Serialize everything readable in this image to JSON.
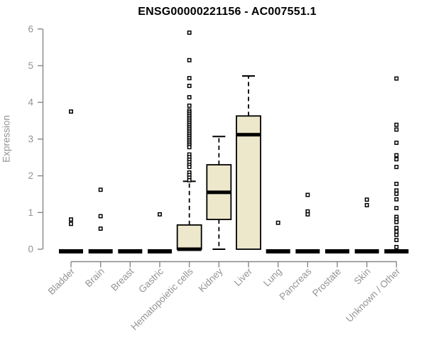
{
  "chart_data": {
    "type": "boxplot",
    "title": "ENSG00000221156 - AC007551.1",
    "ylabel": "Expression",
    "xlabel": "",
    "ylim": [
      0,
      6
    ],
    "yticks": [
      0,
      1,
      2,
      3,
      4,
      5,
      6
    ],
    "grid": "off",
    "legend": "none",
    "categories": [
      "Bladder",
      "Brain",
      "Breast",
      "Gastric",
      "Hematopoietic cells",
      "Kidney",
      "Liver",
      "Lung",
      "Pancreas",
      "Prostate",
      "Skin",
      "Unknown / Other"
    ],
    "boxes": [
      {
        "category": "Bladder",
        "whisker_low": 0,
        "q1": 0,
        "median": 0,
        "q3": 0,
        "whisker_high": 0,
        "outliers": [
          3.75,
          0.81,
          0.69
        ]
      },
      {
        "category": "Brain",
        "whisker_low": 0,
        "q1": 0,
        "median": 0,
        "q3": 0,
        "whisker_high": 0,
        "outliers": [
          1.62,
          0.9,
          0.56
        ]
      },
      {
        "category": "Breast",
        "whisker_low": 0,
        "q1": 0,
        "median": 0,
        "q3": 0,
        "whisker_high": 0,
        "outliers": []
      },
      {
        "category": "Gastric",
        "whisker_low": 0,
        "q1": 0,
        "median": 0,
        "q3": 0,
        "whisker_high": 0,
        "outliers": [
          0.95
        ]
      },
      {
        "category": "Hematopoietic cells",
        "whisker_low": 0,
        "q1": 0,
        "median": 0,
        "q3": 0.66,
        "whisker_high": 1.85,
        "outliers": [
          5.9,
          5.15,
          4.66,
          4.45,
          4.14,
          3.91,
          3.78,
          3.73,
          3.68,
          3.63,
          3.58,
          3.53,
          3.48,
          3.43,
          3.38,
          3.33,
          3.28,
          3.23,
          3.18,
          3.13,
          3.08,
          3.03,
          2.98,
          2.93,
          2.88,
          2.83,
          2.78,
          2.58,
          2.51,
          2.44,
          2.37,
          2.3,
          2.24,
          2.09,
          2.02,
          1.95,
          1.88
        ]
      },
      {
        "category": "Kidney",
        "whisker_low": 0,
        "q1": 0.81,
        "median": 1.55,
        "q3": 2.3,
        "whisker_high": 3.07,
        "outliers": []
      },
      {
        "category": "Liver",
        "whisker_low": 0,
        "q1": 0,
        "median": 3.12,
        "q3": 3.63,
        "whisker_high": 4.72,
        "outliers": []
      },
      {
        "category": "Lung",
        "whisker_low": 0,
        "q1": 0,
        "median": 0,
        "q3": 0,
        "whisker_high": 0,
        "outliers": [
          0.72
        ]
      },
      {
        "category": "Pancreas",
        "whisker_low": 0,
        "q1": 0,
        "median": 0,
        "q3": 0,
        "whisker_high": 0,
        "outliers": [
          1.48,
          1.03,
          0.95
        ]
      },
      {
        "category": "Prostate",
        "whisker_low": 0,
        "q1": 0,
        "median": 0,
        "q3": 0,
        "whisker_high": 0,
        "outliers": []
      },
      {
        "category": "Skin",
        "whisker_low": 0,
        "q1": 0,
        "median": 0,
        "q3": 0,
        "whisker_high": 0,
        "outliers": [
          1.35,
          1.2
        ]
      },
      {
        "category": "Unknown / Other",
        "whisker_low": 0,
        "q1": 0,
        "median": 0,
        "q3": 0,
        "whisker_high": 0,
        "outliers": [
          4.65,
          3.39,
          3.26,
          2.9,
          2.56,
          2.45,
          2.24,
          1.78,
          1.6,
          1.51,
          1.36,
          1.12,
          0.88,
          0.81,
          0.74,
          0.58,
          0.48,
          0.39,
          0.25,
          0.06
        ]
      }
    ],
    "style": {
      "box_fill": "#EDE8CC",
      "box_stroke": "#000000",
      "median_color": "#000000",
      "whisker_color": "#000000",
      "outlier_stroke": "#000000",
      "outlier_fill": "#FFFFFF",
      "axis_color": "#878787",
      "tick_label_color": "#949494",
      "title_color": "#000000",
      "background": "#FFFFFF"
    }
  }
}
